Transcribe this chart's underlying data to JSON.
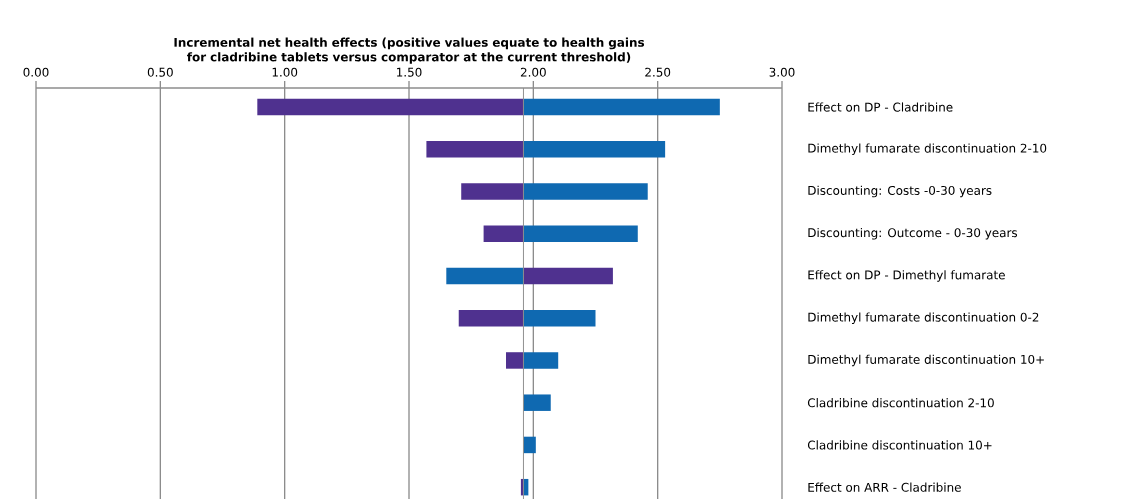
{
  "chart_data": {
    "type": "bar",
    "orientation": "horizontal",
    "title": "Incremental net health effects (positive values equate to health gains for cladribine tablets versus comparator at the current threshold)",
    "categories": [
      "Effect on DP - Cladribine",
      "Dimethyl fumarate  discontinuation 2-10",
      "Discounting: Costs -0-30 years",
      "Discounting: Outcome - 0-30 years",
      "Effect on DP - Dimethyl fumarate",
      "Dimethyl fumarate  discontinuation 0-2",
      "Dimethyl fumarate  discontinuation 10+",
      "Cladribine discontinuation 2-10",
      "Cladribine discontinuation 10+",
      "Effect on ARR - Cladribine"
    ],
    "series": [
      {
        "color": "#4f318f",
        "base": [
          1.96,
          1.96,
          1.96,
          1.96,
          1.96,
          1.96,
          1.96,
          null,
          null,
          1.96
        ],
        "values": [
          -1.07,
          -0.39,
          -0.25,
          -0.16,
          0.36,
          -0.26,
          -0.07,
          null,
          null,
          -0.01
        ]
      },
      {
        "color": "#0f69b1",
        "base": [
          1.96,
          1.96,
          1.96,
          1.96,
          1.96,
          1.96,
          1.96,
          1.96,
          1.96,
          1.96
        ],
        "values": [
          0.79,
          0.57,
          0.5,
          0.46,
          -0.31,
          0.29,
          0.14,
          0.11,
          0.05,
          0.02
        ]
      }
    ],
    "ref_lines": [
      {
        "axis": "x",
        "value": 1.96,
        "color": "#8c8c8c"
      }
    ],
    "xlim": [
      0,
      3
    ],
    "xticks": [
      {
        "value": 0,
        "label": "0.00"
      },
      {
        "value": 0.5,
        "label": "0.50"
      },
      {
        "value": 1,
        "label": "1.00"
      },
      {
        "value": 1.5,
        "label": "1.50"
      },
      {
        "value": 2,
        "label": "2.00"
      },
      {
        "value": 2.5,
        "label": "2.50"
      },
      {
        "value": 3,
        "label": "3.00"
      }
    ],
    "grid": "x"
  }
}
